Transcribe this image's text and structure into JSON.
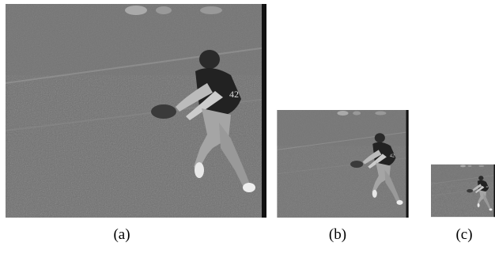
{
  "figure": {
    "panels": [
      {
        "caption": "(a)"
      },
      {
        "caption": "(b)"
      },
      {
        "caption": "(c)"
      }
    ]
  }
}
